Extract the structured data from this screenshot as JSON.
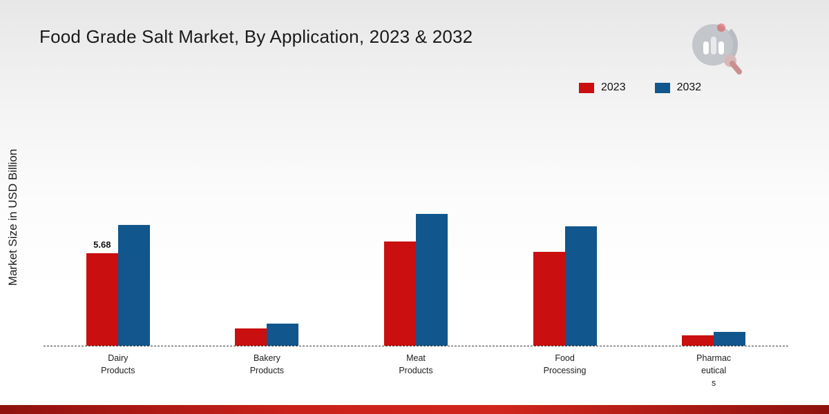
{
  "header": {
    "title": "Food Grade Salt Market, By Application, 2023 & 2032"
  },
  "chart_data": {
    "type": "bar",
    "title": "Food Grade Salt Market, By Application, 2023 & 2032",
    "ylabel": "Market Size in USD Billion",
    "xlabel": "",
    "legend_position": "top-right",
    "grid": false,
    "baseline_style": "dashed",
    "categories": [
      "Dairy\nProducts",
      "Bakery\nProducts",
      "Meat\nProducts",
      "Food\nProcessing",
      "Pharmac\neutical\ns"
    ],
    "series": [
      {
        "name": "2023",
        "color": "#c90f0f",
        "values": [
          5.68,
          1.05,
          6.4,
          5.75,
          0.65
        ]
      },
      {
        "name": "2032",
        "color": "#11568c",
        "values": [
          7.4,
          1.35,
          8.1,
          7.35,
          0.85
        ]
      }
    ],
    "data_labels": [
      {
        "series": "2023",
        "category_index": 0,
        "text": "5.68"
      }
    ],
    "ylim": [
      0,
      9
    ]
  }
}
